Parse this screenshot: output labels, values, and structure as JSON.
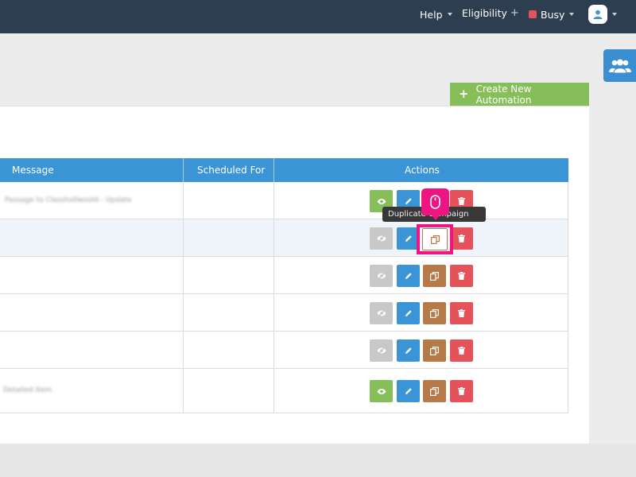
{
  "navbar": {
    "help_label": "Help",
    "eligibility_label": "Eligibility",
    "status_label": "Busy",
    "status_color": "#e5525a",
    "plus_symbol": "+"
  },
  "toolbar": {
    "create_label": "Create New Automation",
    "create_color": "#86be5a"
  },
  "table": {
    "headers": {
      "message": "Message",
      "scheduled": "Scheduled For",
      "actions": "Actions"
    },
    "header_color": "#3b94d6",
    "rows": [
      {
        "message": "Passage to Classhollwoold - Update",
        "scheduled": "",
        "view_enabled": true
      },
      {
        "message": "",
        "scheduled": "",
        "view_enabled": false,
        "hovered": true
      },
      {
        "message": "",
        "scheduled": "",
        "view_enabled": false
      },
      {
        "message": "",
        "scheduled": "",
        "view_enabled": false
      },
      {
        "message": "",
        "scheduled": "",
        "view_enabled": false
      },
      {
        "message": "Detailed Item",
        "scheduled": "",
        "view_enabled": true
      }
    ],
    "action_icons": [
      "eye-icon",
      "pencil-icon",
      "copy-icon",
      "trash-icon"
    ]
  },
  "tooltip": {
    "text": "Duplicate Campaign"
  },
  "annotation": {
    "highlight_color": "#ee1583",
    "badge_icon": "mouse-icon"
  },
  "side_tab": {
    "icon": "users-icon",
    "color": "#3b8fd0"
  }
}
